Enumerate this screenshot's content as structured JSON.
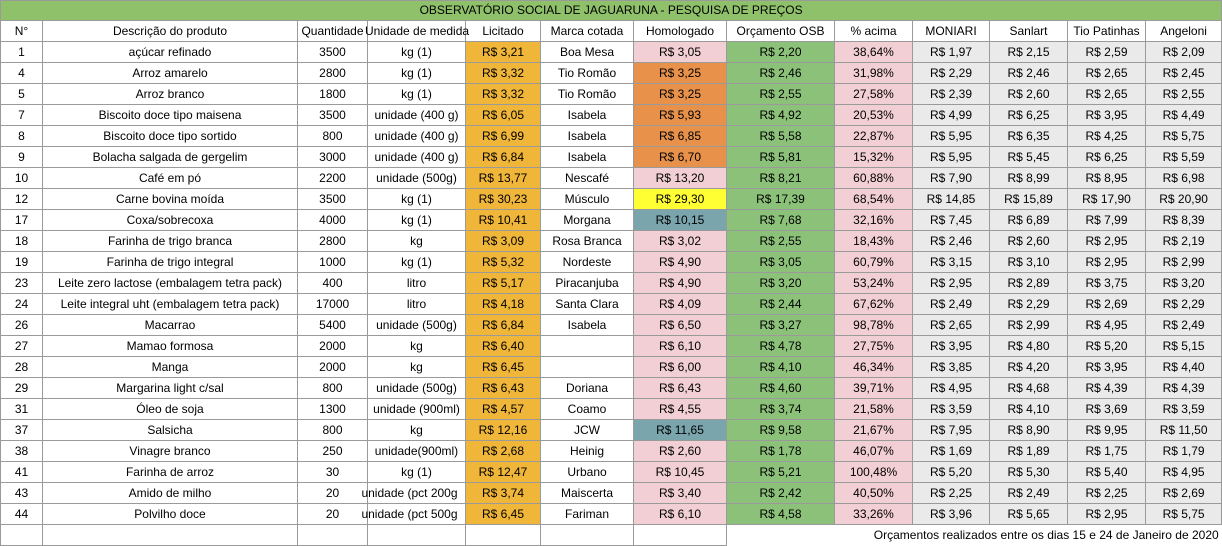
{
  "title": "OBSERVATÓRIO SOCIAL DE JAGUARUNA - PESQUISA DE PREÇOS",
  "headers": [
    "N°",
    "Descrição do produto",
    "Quantidade",
    "Unidade de medida",
    "Licitado",
    "Marca cotada",
    "Homologado",
    "Orçamento OSB",
    "% acima",
    "MONIARI",
    "Sanlart",
    "Tio Patinhas",
    "Angeloni"
  ],
  "colors": {
    "licitado": "#f0b63a",
    "homologado_header": "#e06b6b",
    "orcamento_osb": "#8cc179",
    "pct_acima": "#f2cfd4",
    "homologado_orange": "#e8914a",
    "homologado_yellow": "#ffff33",
    "homologado_teal": "#7aa5ad",
    "banner": "#8fc06a"
  },
  "rows": [
    {
      "n": "1",
      "desc": "açúcar refinado",
      "qtd": "3500",
      "unid": "kg (1)",
      "lic": "R$ 3,21",
      "marca": "Boa Mesa",
      "homo": "R$ 3,05",
      "homo_color": "pink",
      "osb": "R$ 2,20",
      "pct": "38,64%",
      "mon": "R$ 1,97",
      "san": "R$ 2,15",
      "tio": "R$ 2,59",
      "ang": "R$ 2,09"
    },
    {
      "n": "4",
      "desc": "Arroz amarelo",
      "qtd": "2800",
      "unid": "kg (1)",
      "lic": "R$ 3,32",
      "marca": "Tio Romão",
      "homo": "R$ 3,25",
      "homo_color": "orange",
      "osb": "R$ 2,46",
      "pct": "31,98%",
      "mon": "R$ 2,29",
      "san": "R$ 2,46",
      "tio": "R$ 2,65",
      "ang": "R$ 2,45"
    },
    {
      "n": "5",
      "desc": "Arroz branco",
      "qtd": "1800",
      "unid": "kg (1)",
      "lic": "R$ 3,32",
      "marca": "Tio Romão",
      "homo": "R$ 3,25",
      "homo_color": "orange",
      "osb": "R$ 2,55",
      "pct": "27,58%",
      "mon": "R$ 2,39",
      "san": "R$ 2,60",
      "tio": "R$ 2,65",
      "ang": "R$ 2,55"
    },
    {
      "n": "7",
      "desc": "Biscoito doce tipo maisena",
      "qtd": "3500",
      "unid": "unidade (400 g)",
      "lic": "R$ 6,05",
      "marca": "Isabela",
      "homo": "R$ 5,93",
      "homo_color": "orange",
      "osb": "R$ 4,92",
      "pct": "20,53%",
      "mon": "R$ 4,99",
      "san": "R$ 6,25",
      "tio": "R$ 3,95",
      "ang": "R$ 4,49"
    },
    {
      "n": "8",
      "desc": "Biscoito doce tipo sortido",
      "qtd": "800",
      "unid": "unidade (400 g)",
      "lic": "R$ 6,99",
      "marca": "Isabela",
      "homo": "R$ 6,85",
      "homo_color": "orange",
      "osb": "R$ 5,58",
      "pct": "22,87%",
      "mon": "R$ 5,95",
      "san": "R$ 6,35",
      "tio": "R$ 4,25",
      "ang": "R$ 5,75"
    },
    {
      "n": "9",
      "desc": "Bolacha salgada de gergelim",
      "qtd": "3000",
      "unid": "unidade (400 g)",
      "lic": "R$ 6,84",
      "marca": "Isabela",
      "homo": "R$ 6,70",
      "homo_color": "orange",
      "osb": "R$ 5,81",
      "pct": "15,32%",
      "mon": "R$ 5,95",
      "san": "R$ 5,45",
      "tio": "R$ 6,25",
      "ang": "R$ 5,59"
    },
    {
      "n": "10",
      "desc": "Café em pó",
      "qtd": "2200",
      "unid": "unidade (500g)",
      "lic": "R$ 13,77",
      "marca": "Nescafé",
      "homo": "R$ 13,20",
      "homo_color": "pink",
      "osb": "R$ 8,21",
      "pct": "60,88%",
      "mon": "R$ 7,90",
      "san": "R$ 8,99",
      "tio": "R$ 8,95",
      "ang": "R$ 6,98"
    },
    {
      "n": "12",
      "desc": "Carne bovina moída",
      "qtd": "3500",
      "unid": "kg (1)",
      "lic": "R$ 30,23",
      "marca": "Músculo",
      "homo": "R$ 29,30",
      "homo_color": "yellow",
      "osb": "R$ 17,39",
      "pct": "68,54%",
      "mon": "R$ 14,85",
      "san": "R$ 15,89",
      "tio": "R$ 17,90",
      "ang": "R$ 20,90"
    },
    {
      "n": "17",
      "desc": "Coxa/sobrecoxa",
      "qtd": "4000",
      "unid": "kg (1)",
      "lic": "R$ 10,41",
      "marca": "Morgana",
      "homo": "R$ 10,15",
      "homo_color": "teal",
      "osb": "R$ 7,68",
      "pct": "32,16%",
      "mon": "R$ 7,45",
      "san": "R$ 6,89",
      "tio": "R$ 7,99",
      "ang": "R$ 8,39"
    },
    {
      "n": "18",
      "desc": "Farinha de trigo branca",
      "qtd": "2800",
      "unid": "kg",
      "lic": "R$ 3,09",
      "marca": "Rosa Branca",
      "homo": "R$ 3,02",
      "homo_color": "pink",
      "osb": "R$ 2,55",
      "pct": "18,43%",
      "mon": "R$ 2,46",
      "san": "R$ 2,60",
      "tio": "R$ 2,95",
      "ang": "R$ 2,19"
    },
    {
      "n": "19",
      "desc": "Farinha de trigo integral",
      "qtd": "1000",
      "unid": "kg (1)",
      "lic": "R$ 5,32",
      "marca": "Nordeste",
      "homo": "R$ 4,90",
      "homo_color": "pink",
      "osb": "R$ 3,05",
      "pct": "60,79%",
      "mon": "R$ 3,15",
      "san": "R$ 3,10",
      "tio": "R$ 2,95",
      "ang": "R$ 2,99"
    },
    {
      "n": "23",
      "desc": "Leite zero lactose (embalagem tetra pack)",
      "qtd": "400",
      "unid": "litro",
      "lic": "R$ 5,17",
      "marca": "Piracanjuba",
      "homo": "R$ 4,90",
      "homo_color": "pink",
      "osb": "R$ 3,20",
      "pct": "53,24%",
      "mon": "R$ 2,95",
      "san": "R$ 2,89",
      "tio": "R$ 3,75",
      "ang": "R$ 3,20"
    },
    {
      "n": "24",
      "desc": "Leite integral uht (embalagem tetra pack)",
      "qtd": "17000",
      "unid": "litro",
      "lic": "R$ 4,18",
      "marca": "Santa Clara",
      "homo": "R$ 4,09",
      "homo_color": "pink",
      "osb": "R$ 2,44",
      "pct": "67,62%",
      "mon": "R$ 2,49",
      "san": "R$ 2,29",
      "tio": "R$ 2,69",
      "ang": "R$ 2,29"
    },
    {
      "n": "26",
      "desc": "Macarrao",
      "qtd": "5400",
      "unid": "unidade (500g)",
      "lic": "R$ 6,84",
      "marca": "Isabela",
      "homo": "R$ 6,50",
      "homo_color": "pink",
      "osb": "R$ 3,27",
      "pct": "98,78%",
      "mon": "R$ 2,65",
      "san": "R$ 2,99",
      "tio": "R$ 4,95",
      "ang": "R$ 2,49"
    },
    {
      "n": "27",
      "desc": "Mamao formosa",
      "qtd": "2000",
      "unid": "kg",
      "lic": "R$ 6,40",
      "marca": "",
      "homo": "R$ 6,10",
      "homo_color": "pink",
      "osb": "R$ 4,78",
      "pct": "27,75%",
      "mon": "R$ 3,95",
      "san": "R$ 4,80",
      "tio": "R$ 5,20",
      "ang": "R$ 5,15"
    },
    {
      "n": "28",
      "desc": "Manga",
      "qtd": "2000",
      "unid": "kg",
      "lic": "R$ 6,45",
      "marca": "",
      "homo": "R$ 6,00",
      "homo_color": "pink",
      "osb": "R$ 4,10",
      "pct": "46,34%",
      "mon": "R$ 3,85",
      "san": "R$ 4,20",
      "tio": "R$ 3,95",
      "ang": "R$ 4,40"
    },
    {
      "n": "29",
      "desc": "Margarina light c/sal",
      "qtd": "800",
      "unid": "unidade (500g)",
      "lic": "R$ 6,43",
      "marca": "Doriana",
      "homo": "R$ 6,43",
      "homo_color": "pink",
      "osb": "R$ 4,60",
      "pct": "39,71%",
      "mon": "R$ 4,95",
      "san": "R$ 4,68",
      "tio": "R$ 4,39",
      "ang": "R$ 4,39"
    },
    {
      "n": "31",
      "desc": "Óleo de soja",
      "qtd": "1300",
      "unid": "unidade (900ml)",
      "lic": "R$ 4,57",
      "marca": "Coamo",
      "homo": "R$ 4,55",
      "homo_color": "pink",
      "osb": "R$ 3,74",
      "pct": "21,58%",
      "mon": "R$ 3,59",
      "san": "R$ 4,10",
      "tio": "R$ 3,69",
      "ang": "R$ 3,59"
    },
    {
      "n": "37",
      "desc": "Salsicha",
      "qtd": "800",
      "unid": "kg",
      "lic": "R$ 12,16",
      "marca": "JCW",
      "homo": "R$ 11,65",
      "homo_color": "teal",
      "osb": "R$ 9,58",
      "pct": "21,67%",
      "mon": "R$ 7,95",
      "san": "R$ 8,90",
      "tio": "R$ 9,95",
      "ang": "R$ 11,50"
    },
    {
      "n": "38",
      "desc": "Vinagre branco",
      "qtd": "250",
      "unid": "unidade(900ml)",
      "lic": "R$ 2,68",
      "marca": "Heinig",
      "homo": "R$ 2,60",
      "homo_color": "pink",
      "osb": "R$ 1,78",
      "pct": "46,07%",
      "mon": "R$ 1,69",
      "san": "R$ 1,89",
      "tio": "R$ 1,75",
      "ang": "R$ 1,79"
    },
    {
      "n": "41",
      "desc": "Farinha de arroz",
      "qtd": "30",
      "unid": "kg (1)",
      "lic": "R$ 12,47",
      "marca": "Urbano",
      "homo": "R$ 10,45",
      "homo_color": "pink",
      "osb": "R$ 5,21",
      "pct": "100,48%",
      "mon": "R$ 5,20",
      "san": "R$ 5,30",
      "tio": "R$ 5,40",
      "ang": "R$ 4,95"
    },
    {
      "n": "43",
      "desc": "Amido de milho",
      "qtd": "20",
      "unid": "unidade (pct 200g",
      "lic": "R$ 3,74",
      "marca": "Maiscerta",
      "homo": "R$ 3,40",
      "homo_color": "pink",
      "osb": "R$ 2,42",
      "pct": "40,50%",
      "mon": "R$ 2,25",
      "san": "R$ 2,49",
      "tio": "R$ 2,25",
      "ang": "R$ 2,69"
    },
    {
      "n": "44",
      "desc": "Polvilho doce",
      "qtd": "20",
      "unid": "unidade (pct 500g",
      "lic": "R$ 6,45",
      "marca": "Fariman",
      "homo": "R$ 6,10",
      "homo_color": "pink",
      "osb": "R$ 4,58",
      "pct": "33,26%",
      "mon": "R$ 3,96",
      "san": "R$ 5,65",
      "tio": "R$ 2,95",
      "ang": "R$ 5,75"
    }
  ],
  "footer_note": "Orçamentos realizados entre os dias 15 e 24 de Janeiro de 2020"
}
